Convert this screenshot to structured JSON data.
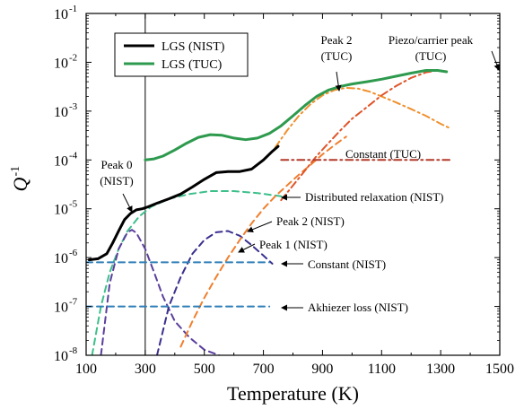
{
  "chart_data": {
    "type": "line",
    "xlabel": "Temperature  (K)",
    "ylabel": "Q",
    "ylabel_sup": "-1",
    "xlim": [
      100,
      1500
    ],
    "ylim": [
      1e-08,
      0.1
    ],
    "y_scale": "log",
    "x_ticks": [
      100,
      300,
      500,
      700,
      900,
      1100,
      1300,
      1500
    ],
    "x_tick_labels": [
      "100",
      "300",
      "500",
      "700",
      "900",
      "1100",
      "1300",
      "1500"
    ],
    "y_ticks": [
      1e-08,
      1e-07,
      1e-06,
      1e-05,
      0.0001,
      0.001,
      0.01,
      0.1
    ],
    "y_tick_bases": [
      "10",
      "10",
      "10",
      "10",
      "10",
      "10",
      "10",
      "10"
    ],
    "y_tick_exps": [
      "-8",
      "-7",
      "-6",
      "-5",
      "-4",
      "-3",
      "-2",
      "-1"
    ],
    "vline_x": 300,
    "legend": {
      "position": "top-left",
      "entries": [
        {
          "label": "LGS (NIST)",
          "color": "#000000"
        },
        {
          "label": "LGS (TUC)",
          "color": "#2e9a4e"
        }
      ]
    },
    "series": [
      {
        "name": "LGS (NIST)",
        "style": "solid",
        "color": "#000000",
        "x": [
          110,
          140,
          170,
          190,
          210,
          230,
          250,
          270,
          290,
          310,
          340,
          380,
          420,
          460,
          500,
          540,
          580,
          620,
          660,
          700,
          730,
          750
        ],
        "y": [
          9e-07,
          9.5e-07,
          1.2e-06,
          2e-06,
          3.5e-06,
          6e-06,
          8e-06,
          9.5e-06,
          1e-05,
          1.1e-05,
          1.3e-05,
          1.6e-05,
          2e-05,
          2.8e-05,
          4e-05,
          5.5e-05,
          5.8e-05,
          5.8e-05,
          6.5e-05,
          0.0001,
          0.00015,
          0.00019
        ]
      },
      {
        "name": "LGS (TUC)",
        "style": "solid",
        "color": "#2e9a4e",
        "x": [
          300,
          330,
          360,
          400,
          440,
          480,
          520,
          560,
          600,
          640,
          680,
          720,
          760,
          800,
          840,
          880,
          920,
          960,
          1000,
          1050,
          1100,
          1150,
          1200,
          1250,
          1290,
          1320
        ],
        "y": [
          0.0001,
          0.000105,
          0.00012,
          0.00016,
          0.00022,
          0.00029,
          0.00033,
          0.00032,
          0.00028,
          0.00026,
          0.00028,
          0.00035,
          0.0005,
          0.0008,
          0.0013,
          0.002,
          0.0027,
          0.0032,
          0.0036,
          0.004,
          0.0045,
          0.0052,
          0.006,
          0.0068,
          0.0068,
          0.0064
        ]
      },
      {
        "name": "Distributed relaxation (NIST)",
        "style": "dash",
        "color": "#3dbf8a",
        "x": [
          120,
          150,
          180,
          210,
          240,
          280,
          320,
          380,
          450,
          520,
          600,
          680,
          760
        ],
        "y": [
          1e-08,
          1e-07,
          5e-07,
          1.5e-06,
          3.5e-06,
          7e-06,
          1.1e-05,
          1.6e-05,
          2e-05,
          2.3e-05,
          2.3e-05,
          2.1e-05,
          1.8e-05
        ]
      },
      {
        "name": "Peak 0 (NIST)",
        "style": "dash",
        "color": "#5b3f9c",
        "x": [
          150,
          180,
          210,
          240,
          255,
          270,
          300,
          330,
          360,
          400,
          450,
          500,
          550
        ],
        "y": [
          1e-08,
          3e-07,
          1.5e-06,
          3.3e-06,
          3.7e-06,
          3.2e-06,
          1.5e-06,
          5e-07,
          1.6e-07,
          5e-08,
          2.3e-08,
          1.3e-08,
          1e-08
        ]
      },
      {
        "name": "Peak 1 (NIST)",
        "style": "dash",
        "color": "#3a2f8e",
        "x": [
          340,
          380,
          420,
          460,
          500,
          540,
          580,
          620,
          660,
          700,
          730
        ],
        "y": [
          1e-08,
          1e-07,
          4e-07,
          1.2e-06,
          2.3e-06,
          3.3e-06,
          3.5e-06,
          2.8e-06,
          1.8e-06,
          1.1e-06,
          7.5e-07
        ]
      },
      {
        "name": "Peak 2 (NIST)",
        "style": "dash",
        "color": "#f07f2e",
        "x": [
          420,
          460,
          500,
          540,
          580,
          620,
          660,
          700,
          740,
          780,
          820,
          860,
          900,
          940,
          980
        ],
        "y": [
          1.5e-08,
          5e-08,
          1.5e-07,
          4e-07,
          1e-06,
          2.3e-06,
          5e-06,
          1e-05,
          1.8e-05,
          3e-05,
          5e-05,
          8e-05,
          0.00013,
          0.0002,
          0.0003
        ]
      },
      {
        "name": "Constant (NIST)",
        "style": "dash",
        "color": "#2f7fb8",
        "x": [
          100,
          720
        ],
        "y": [
          8e-07,
          8e-07
        ]
      },
      {
        "name": "Akhiezer loss (NIST)",
        "style": "dash",
        "color": "#2f7fb8",
        "x": [
          100,
          720
        ],
        "y": [
          1e-07,
          1e-07
        ]
      },
      {
        "name": "Peak 2 (TUC)",
        "style": "dashdot",
        "color": "#f0902e",
        "x": [
          740,
          780,
          820,
          860,
          900,
          940,
          980,
          1020,
          1060,
          1100,
          1150,
          1200,
          1250,
          1300,
          1330
        ],
        "y": [
          0.00018,
          0.0004,
          0.0008,
          0.0014,
          0.0021,
          0.0027,
          0.003,
          0.0029,
          0.0025,
          0.002,
          0.0015,
          0.0011,
          0.0008,
          0.00055,
          0.00045
        ]
      },
      {
        "name": "Piezo/carrier peak (TUC)",
        "style": "dashdot",
        "color": "#e0552a",
        "x": [
          760,
          800,
          840,
          880,
          920,
          960,
          1000,
          1050,
          1100,
          1150,
          1200,
          1250,
          1290,
          1330
        ],
        "y": [
          1.5e-05,
          3e-05,
          6e-05,
          0.00012,
          0.00022,
          0.0004,
          0.0007,
          0.0012,
          0.0021,
          0.0033,
          0.0048,
          0.0062,
          0.0068,
          0.0064
        ]
      },
      {
        "name": "Constant (TUC)",
        "style": "dashdot",
        "color": "#b33a2a",
        "x": [
          760,
          1330
        ],
        "y": [
          0.0001,
          0.0001
        ]
      }
    ],
    "annotations": [
      {
        "lines": [
          "Peak 0",
          "(NIST)"
        ]
      },
      {
        "lines": [
          "Peak 2",
          "(TUC)"
        ]
      },
      {
        "lines": [
          "Piezo/carrier peak",
          "(TUC)"
        ]
      },
      {
        "lines": [
          "Constant (TUC)"
        ]
      },
      {
        "lines": [
          "Distributed relaxation (NIST)"
        ]
      },
      {
        "lines": [
          "Peak 2 (NIST)"
        ]
      },
      {
        "lines": [
          "Peak 1 (NIST)"
        ]
      },
      {
        "lines": [
          "Constant (NIST)"
        ]
      },
      {
        "lines": [
          "Akhiezer loss (NIST)"
        ]
      }
    ]
  }
}
